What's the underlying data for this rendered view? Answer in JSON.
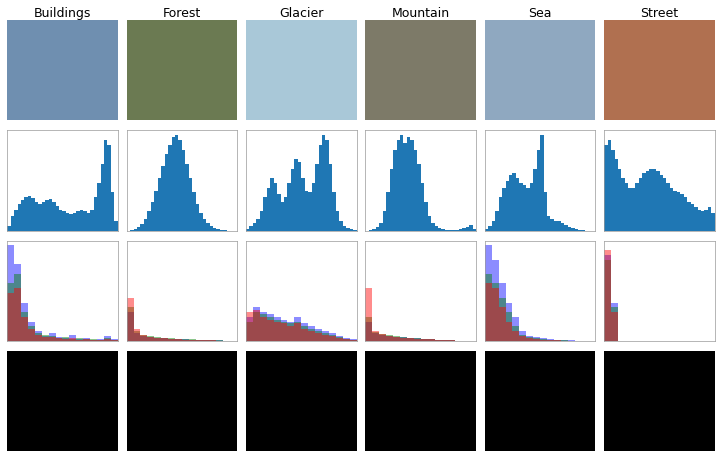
{
  "chart_data": [
    {
      "type": "image",
      "title": "Buildings",
      "color": "#6f8fb0"
    },
    {
      "type": "image",
      "title": "Forest",
      "color": "#6b7a52"
    },
    {
      "type": "image",
      "title": "Glacier",
      "color": "#a9c8d8"
    },
    {
      "type": "image",
      "title": "Mountain",
      "color": "#7d7a68"
    },
    {
      "type": "image",
      "title": "Sea",
      "color": "#8fa8c0"
    },
    {
      "type": "image",
      "title": "Street",
      "color": "#b07050"
    },
    {
      "type": "histogram",
      "color": "#1f77b4",
      "xlim": [
        0,
        256
      ],
      "ylim": [
        0,
        105
      ],
      "tick_labels": false,
      "bins": [
        0,
        8,
        16,
        24,
        32,
        40,
        48,
        56,
        64,
        72,
        80,
        88,
        96,
        104,
        112,
        120,
        128,
        136,
        144,
        152,
        160,
        168,
        176,
        184,
        192,
        200,
        208,
        216,
        224,
        232,
        240,
        248,
        256
      ],
      "counts": [
        5,
        15,
        22,
        28,
        32,
        35,
        36,
        34,
        30,
        28,
        30,
        32,
        33,
        30,
        26,
        22,
        20,
        18,
        17,
        18,
        20,
        22,
        20,
        18,
        22,
        35,
        50,
        70,
        95,
        90,
        40,
        10
      ]
    },
    {
      "type": "histogram",
      "color": "#1f77b4",
      "xlim": [
        0,
        256
      ],
      "ylim": [
        0,
        105
      ],
      "tick_labels": false,
      "bins": [
        0,
        8,
        16,
        24,
        32,
        40,
        48,
        56,
        64,
        72,
        80,
        88,
        96,
        104,
        112,
        120,
        128,
        136,
        144,
        152,
        160,
        168,
        176,
        184,
        192,
        200,
        208,
        216,
        224,
        232,
        240,
        248,
        256
      ],
      "counts": [
        0,
        1,
        2,
        4,
        7,
        12,
        20,
        30,
        42,
        55,
        68,
        80,
        90,
        98,
        100,
        95,
        85,
        70,
        55,
        40,
        28,
        18,
        12,
        8,
        5,
        3,
        2,
        1,
        1,
        0,
        0,
        0
      ]
    },
    {
      "type": "histogram",
      "color": "#1f77b4",
      "xlim": [
        0,
        256
      ],
      "ylim": [
        0,
        105
      ],
      "tick_labels": false,
      "bins": [
        0,
        8,
        16,
        24,
        32,
        40,
        48,
        56,
        64,
        72,
        80,
        88,
        96,
        104,
        112,
        120,
        128,
        136,
        144,
        152,
        160,
        168,
        176,
        184,
        192,
        200,
        208,
        216,
        224,
        232,
        240,
        248,
        256
      ],
      "counts": [
        2,
        5,
        8,
        12,
        20,
        35,
        45,
        55,
        50,
        38,
        30,
        35,
        50,
        65,
        75,
        72,
        55,
        42,
        40,
        50,
        70,
        90,
        100,
        95,
        70,
        40,
        20,
        10,
        5,
        3,
        2,
        1
      ]
    },
    {
      "type": "histogram",
      "color": "#1f77b4",
      "xlim": [
        0,
        256
      ],
      "ylim": [
        0,
        105
      ],
      "tick_labels": false,
      "bins": [
        0,
        8,
        16,
        24,
        32,
        40,
        48,
        56,
        64,
        72,
        80,
        88,
        96,
        104,
        112,
        120,
        128,
        136,
        144,
        152,
        160,
        168,
        176,
        184,
        192,
        200,
        208,
        216,
        224,
        232,
        240,
        248,
        256
      ],
      "counts": [
        0,
        1,
        2,
        4,
        8,
        20,
        40,
        65,
        85,
        95,
        100,
        92,
        98,
        95,
        85,
        70,
        50,
        30,
        15,
        8,
        5,
        3,
        2,
        1,
        1,
        1,
        1,
        2,
        3,
        4,
        6,
        2
      ]
    },
    {
      "type": "histogram",
      "color": "#1f77b4",
      "xlim": [
        0,
        256
      ],
      "ylim": [
        0,
        105
      ],
      "tick_labels": false,
      "bins": [
        0,
        8,
        16,
        24,
        32,
        40,
        48,
        56,
        64,
        72,
        80,
        88,
        96,
        104,
        112,
        120,
        128,
        136,
        144,
        152,
        160,
        168,
        176,
        184,
        192,
        200,
        208,
        216,
        224,
        232,
        240,
        248,
        256
      ],
      "counts": [
        2,
        5,
        10,
        20,
        35,
        45,
        52,
        58,
        60,
        55,
        50,
        48,
        45,
        50,
        65,
        85,
        100,
        40,
        15,
        12,
        10,
        10,
        8,
        6,
        4,
        3,
        2,
        1,
        1,
        0,
        0,
        0
      ]
    },
    {
      "type": "histogram",
      "color": "#1f77b4",
      "xlim": [
        0,
        256
      ],
      "ylim": [
        0,
        105
      ],
      "tick_labels": false,
      "bins": [
        0,
        8,
        16,
        24,
        32,
        40,
        48,
        56,
        64,
        72,
        80,
        88,
        96,
        104,
        112,
        120,
        128,
        136,
        144,
        152,
        160,
        168,
        176,
        184,
        192,
        200,
        208,
        216,
        224,
        232,
        240,
        248,
        256
      ],
      "counts": [
        90,
        95,
        85,
        75,
        65,
        55,
        50,
        45,
        45,
        50,
        55,
        60,
        62,
        65,
        65,
        62,
        58,
        55,
        50,
        45,
        42,
        40,
        38,
        35,
        30,
        28,
        25,
        22,
        20,
        22,
        25,
        18
      ]
    },
    {
      "type": "histogram",
      "xlim": [
        0,
        256
      ],
      "ylim": [
        0,
        105
      ],
      "tick_labels": false,
      "bins": [
        0,
        16,
        32,
        48,
        64,
        80,
        96,
        112,
        128,
        144,
        160,
        176,
        192,
        208,
        224,
        240,
        256
      ],
      "series": [
        {
          "color": "blue",
          "counts": [
            100,
            80,
            40,
            20,
            10,
            5,
            8,
            4,
            3,
            6,
            2,
            3,
            1,
            2,
            5,
            2
          ]
        },
        {
          "color": "green",
          "counts": [
            60,
            70,
            30,
            15,
            8,
            6,
            5,
            3,
            4,
            2,
            3,
            2,
            2,
            1,
            3,
            1
          ]
        },
        {
          "color": "red",
          "counts": [
            50,
            55,
            25,
            12,
            6,
            4,
            4,
            3,
            2,
            3,
            1,
            2,
            1,
            1,
            2,
            1
          ]
        }
      ]
    },
    {
      "type": "histogram",
      "xlim": [
        0,
        256
      ],
      "ylim": [
        0,
        105
      ],
      "tick_labels": false,
      "bins": [
        0,
        16,
        32,
        48,
        64,
        80,
        96,
        112,
        128,
        144,
        160,
        176,
        192,
        208,
        224,
        240,
        256
      ],
      "series": [
        {
          "color": "blue",
          "counts": [
            30,
            8,
            5,
            4,
            3,
            3,
            2,
            2,
            2,
            1,
            1,
            1,
            1,
            1,
            0,
            0
          ]
        },
        {
          "color": "green",
          "counts": [
            35,
            10,
            6,
            5,
            4,
            3,
            3,
            2,
            2,
            2,
            1,
            1,
            1,
            1,
            0,
            0
          ]
        },
        {
          "color": "red",
          "counts": [
            45,
            12,
            6,
            4,
            3,
            3,
            2,
            2,
            1,
            1,
            1,
            1,
            1,
            0,
            0,
            0
          ]
        }
      ]
    },
    {
      "type": "histogram",
      "xlim": [
        0,
        256
      ],
      "ylim": [
        0,
        105
      ],
      "tick_labels": false,
      "bins": [
        0,
        16,
        32,
        48,
        64,
        80,
        96,
        112,
        128,
        144,
        160,
        176,
        192,
        208,
        224,
        240,
        256
      ],
      "series": [
        {
          "color": "blue",
          "counts": [
            25,
            35,
            30,
            28,
            25,
            22,
            20,
            25,
            18,
            15,
            12,
            10,
            8,
            5,
            3,
            2
          ]
        },
        {
          "color": "green",
          "counts": [
            20,
            30,
            28,
            25,
            22,
            20,
            18,
            20,
            15,
            12,
            10,
            8,
            6,
            4,
            2,
            1
          ]
        },
        {
          "color": "red",
          "counts": [
            30,
            32,
            25,
            22,
            20,
            18,
            15,
            18,
            12,
            10,
            8,
            6,
            5,
            3,
            2,
            1
          ]
        }
      ]
    },
    {
      "type": "histogram",
      "xlim": [
        0,
        256
      ],
      "ylim": [
        0,
        105
      ],
      "tick_labels": false,
      "bins": [
        0,
        16,
        32,
        48,
        64,
        80,
        96,
        112,
        128,
        144,
        160,
        176,
        192,
        208,
        224,
        240,
        256
      ],
      "series": [
        {
          "color": "blue",
          "counts": [
            20,
            8,
            6,
            5,
            4,
            4,
            3,
            3,
            2,
            2,
            1,
            1,
            1,
            0,
            0,
            0
          ]
        },
        {
          "color": "green",
          "counts": [
            25,
            9,
            7,
            6,
            5,
            4,
            3,
            3,
            2,
            2,
            1,
            1,
            1,
            0,
            0,
            0
          ]
        },
        {
          "color": "red",
          "counts": [
            55,
            10,
            7,
            5,
            4,
            3,
            3,
            2,
            2,
            2,
            1,
            1,
            1,
            0,
            0,
            0
          ]
        }
      ]
    },
    {
      "type": "histogram",
      "xlim": [
        0,
        256
      ],
      "ylim": [
        0,
        105
      ],
      "tick_labels": false,
      "bins": [
        0,
        16,
        32,
        48,
        64,
        80,
        96,
        112,
        128,
        144,
        160,
        176,
        192,
        208,
        224,
        240,
        256
      ],
      "series": [
        {
          "color": "blue",
          "counts": [
            100,
            85,
            60,
            40,
            25,
            10,
            5,
            4,
            3,
            2,
            1,
            1,
            1,
            0,
            0,
            0
          ]
        },
        {
          "color": "green",
          "counts": [
            70,
            60,
            45,
            30,
            15,
            6,
            4,
            3,
            2,
            1,
            1,
            1,
            0,
            0,
            0,
            0
          ]
        },
        {
          "color": "red",
          "counts": [
            60,
            55,
            35,
            20,
            10,
            5,
            3,
            2,
            1,
            1,
            1,
            0,
            0,
            0,
            0,
            0
          ]
        }
      ]
    },
    {
      "type": "histogram",
      "xlim": [
        0,
        256
      ],
      "ylim": [
        0,
        105
      ],
      "tick_labels": false,
      "bins": [
        0,
        16,
        32,
        48,
        64,
        80,
        96,
        112,
        128,
        144,
        160,
        176,
        192,
        208,
        224,
        240,
        256
      ],
      "series": [
        {
          "color": "blue",
          "counts": [
            90,
            40,
            0,
            0,
            0,
            0,
            0,
            0,
            0,
            0,
            0,
            0,
            0,
            0,
            0,
            0
          ]
        },
        {
          "color": "green",
          "counts": [
            85,
            35,
            0,
            0,
            0,
            0,
            0,
            0,
            0,
            0,
            0,
            0,
            0,
            0,
            0,
            0
          ]
        },
        {
          "color": "red",
          "counts": [
            95,
            30,
            0,
            0,
            0,
            0,
            0,
            0,
            0,
            0,
            0,
            0,
            0,
            0,
            0,
            0
          ]
        }
      ]
    },
    {
      "type": "image",
      "color": "#000000"
    },
    {
      "type": "image",
      "color": "#000000"
    },
    {
      "type": "image",
      "color": "#000000"
    },
    {
      "type": "image",
      "color": "#000000"
    },
    {
      "type": "image",
      "color": "#000000"
    },
    {
      "type": "image",
      "color": "#000000"
    }
  ]
}
